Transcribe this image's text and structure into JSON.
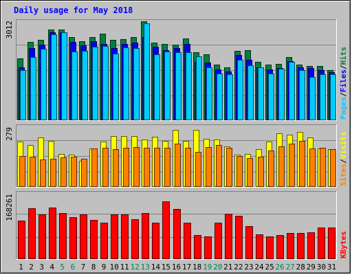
{
  "chart_data": {
    "type": "bar",
    "title": "Daily usage for May 2018",
    "days": [
      "1",
      "2",
      "3",
      "4",
      "5",
      "6",
      "7",
      "8",
      "9",
      "10",
      "11",
      "12",
      "13",
      "14",
      "15",
      "16",
      "17",
      "18",
      "19",
      "20",
      "21",
      "22",
      "23",
      "24",
      "25",
      "26",
      "27",
      "28",
      "29",
      "30",
      "31"
    ],
    "weekend_days": [
      "5",
      "6",
      "12",
      "13",
      "19",
      "20",
      "26",
      "27"
    ],
    "panels": [
      {
        "id": "top",
        "max_label": "3012",
        "ymax": 3012,
        "ylabel_parts": [
          "Pages",
          "/",
          "Files",
          "/",
          "Hits"
        ],
        "ylabel_colors": [
          "#00ccff",
          "#000000",
          "#0000ff",
          "#000000",
          "#008040"
        ],
        "series": [
          {
            "name": "Hits",
            "color": "#008040",
            "values": [
              1860,
              2370,
              2430,
              2750,
              2750,
              2500,
              2380,
              2500,
              2620,
              2430,
              2440,
              2520,
              3000,
              2340,
              2300,
              2290,
              2460,
              2040,
              1990,
              1680,
              1600,
              2100,
              2110,
              1760,
              1680,
              1700,
              1900,
              1680,
              1640,
              1640,
              1500
            ]
          },
          {
            "name": "Files",
            "color": "#0000ff",
            "values": [
              1600,
              2170,
              2270,
              2650,
              2660,
              2360,
              2250,
              2380,
              2300,
              2170,
              2300,
              2340,
              2500,
              2220,
              2120,
              2170,
              2300,
              1750,
              1730,
              1520,
              1460,
              1960,
              1820,
              1600,
              1520,
              1560,
              1780,
              1600,
              1560,
              1500,
              1440
            ]
          },
          {
            "name": "Pages",
            "color": "#00ccff",
            "values": [
              1500,
              1900,
              2150,
              2600,
              2650,
              2080,
              2100,
              2210,
              2240,
              2000,
              2190,
              2180,
              2930,
              1980,
              2080,
              2040,
              2040,
              1920,
              1600,
              1400,
              1390,
              1830,
              1660,
              1590,
              1400,
              1550,
              1760,
              1500,
              1290,
              1380,
              1380
            ]
          }
        ]
      },
      {
        "id": "mid",
        "max_label": "279",
        "ymax": 279,
        "ylabel_parts": [
          "Sites",
          "/",
          "Visits"
        ],
        "ylabel_colors": [
          "#ff8000",
          "#000000",
          "#ffff00"
        ],
        "series": [
          {
            "name": "Visits",
            "color": "#ffff00",
            "values": [
              205,
              190,
              225,
              210,
              150,
              145,
              118,
              175,
              205,
              230,
              230,
              230,
              215,
              228,
              210,
              260,
              210,
              260,
              220,
              215,
              185,
              145,
              150,
              170,
              205,
              245,
              238,
              250,
              225,
              175,
              170
            ]
          },
          {
            "name": "Sites",
            "color": "#ff8000",
            "values": [
              140,
              136,
              125,
              128,
              132,
              135,
              126,
              174,
              178,
              170,
              178,
              182,
              176,
              178,
              178,
              195,
              176,
              158,
              180,
              190,
              178,
              140,
              130,
              136,
              165,
              183,
              195,
              210,
              175,
              178,
              170
            ]
          }
        ]
      },
      {
        "id": "bot",
        "max_label": "168261",
        "ymax": 168261,
        "ylabel_parts": [
          "KBytes"
        ],
        "ylabel_colors": [
          "#ff0000"
        ],
        "series": [
          {
            "name": "KBytes",
            "color": "#ff0000",
            "values": [
              96000,
              128000,
              112000,
              130000,
              116000,
              106000,
              112000,
              98000,
              92000,
              112000,
              112000,
              100000,
              115000,
              92000,
              146000,
              126000,
              92000,
              60000,
              56000,
              92000,
              114000,
              108000,
              82000,
              62000,
              56000,
              60000,
              64000,
              65000,
              66000,
              78000,
              78000
            ]
          }
        ]
      }
    ]
  }
}
